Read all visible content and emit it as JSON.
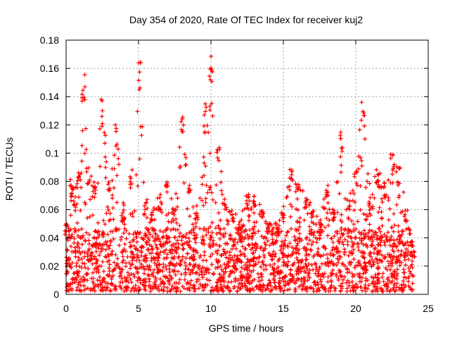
{
  "chart_data": {
    "type": "scatter",
    "title": "Day 354 of 2020, Rate Of TEC Index for receiver kuj2",
    "xlabel": "GPS time / hours",
    "ylabel": "ROTI / TECUs",
    "xlim": [
      0,
      25
    ],
    "ylim": [
      0,
      0.18
    ],
    "x_ticks": [
      0,
      5,
      10,
      15,
      20,
      25
    ],
    "x_tick_labels": [
      "0",
      "5",
      "10",
      "15",
      "20",
      "25"
    ],
    "y_ticks": [
      0,
      0.02,
      0.04,
      0.06,
      0.08,
      0.1,
      0.12,
      0.14,
      0.16,
      0.18
    ],
    "y_tick_labels": [
      "0",
      "0.02",
      "0.04",
      "0.06",
      "0.08",
      "0.1",
      "0.12",
      "0.14",
      "0.16",
      "0.18"
    ],
    "grid": true,
    "marker": "+",
    "marker_color": "#ff0000",
    "x_data_max": 24.0,
    "baseline_upper": 0.045,
    "envelope": [
      [
        0.0,
        0.05
      ],
      [
        0.3,
        0.08
      ],
      [
        0.6,
        0.07
      ],
      [
        0.9,
        0.09
      ],
      [
        1.2,
        0.16
      ],
      [
        1.5,
        0.09
      ],
      [
        2.0,
        0.08
      ],
      [
        2.5,
        0.14
      ],
      [
        3.0,
        0.08
      ],
      [
        3.5,
        0.12
      ],
      [
        4.0,
        0.06
      ],
      [
        4.5,
        0.09
      ],
      [
        5.1,
        0.165
      ],
      [
        5.5,
        0.07
      ],
      [
        6.0,
        0.06
      ],
      [
        6.5,
        0.07
      ],
      [
        7.0,
        0.08
      ],
      [
        7.5,
        0.06
      ],
      [
        8.0,
        0.13
      ],
      [
        8.5,
        0.08
      ],
      [
        9.0,
        0.06
      ],
      [
        9.6,
        0.135
      ],
      [
        10.0,
        0.172
      ],
      [
        10.5,
        0.11
      ],
      [
        11.0,
        0.07
      ],
      [
        11.5,
        0.06
      ],
      [
        12.0,
        0.05
      ],
      [
        12.5,
        0.07
      ],
      [
        13.0,
        0.07
      ],
      [
        13.5,
        0.06
      ],
      [
        14.0,
        0.05
      ],
      [
        14.5,
        0.05
      ],
      [
        15.0,
        0.06
      ],
      [
        15.5,
        0.09
      ],
      [
        16.0,
        0.08
      ],
      [
        16.5,
        0.07
      ],
      [
        17.0,
        0.06
      ],
      [
        17.5,
        0.05
      ],
      [
        18.0,
        0.08
      ],
      [
        18.5,
        0.06
      ],
      [
        19.0,
        0.115
      ],
      [
        19.5,
        0.07
      ],
      [
        20.0,
        0.09
      ],
      [
        20.5,
        0.138
      ],
      [
        21.0,
        0.07
      ],
      [
        21.5,
        0.09
      ],
      [
        22.0,
        0.08
      ],
      [
        22.5,
        0.1
      ],
      [
        23.0,
        0.09
      ],
      [
        23.5,
        0.06
      ],
      [
        24.0,
        0.03
      ]
    ]
  }
}
